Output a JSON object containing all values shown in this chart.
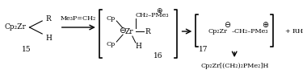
{
  "figsize": [
    3.8,
    0.92
  ],
  "dpi": 100,
  "bg_color": "#ffffff",
  "compound15": "Cp₂Zr",
  "compound15_label": "15",
  "reagent": "Me₃P=CH₂",
  "compound16_label": "16",
  "compound17_label": "17",
  "product_bottom": "Cp₂Zr[(CH₂)₂PMe₂]H",
  "rh": "+ RH"
}
